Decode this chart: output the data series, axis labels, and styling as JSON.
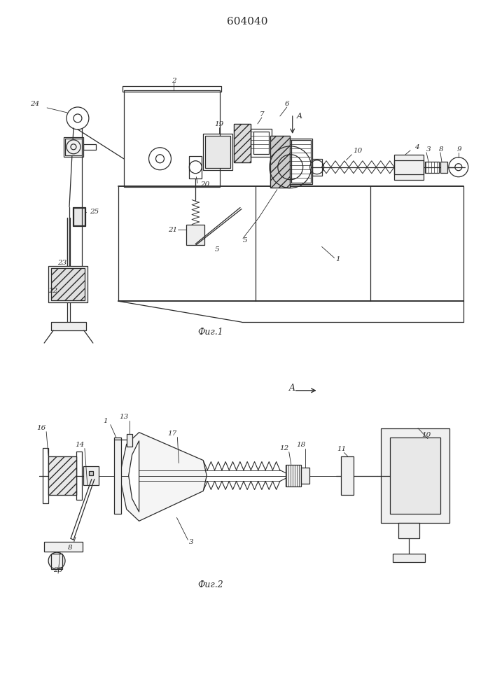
{
  "title": "604040",
  "fig1_label": "Фиг.1",
  "fig2_label": "Фиг.2",
  "bg_color": "#ffffff",
  "line_color": "#2a2a2a",
  "line_width": 0.9,
  "fig_width": 7.07,
  "fig_height": 10.0,
  "dpi": 100
}
